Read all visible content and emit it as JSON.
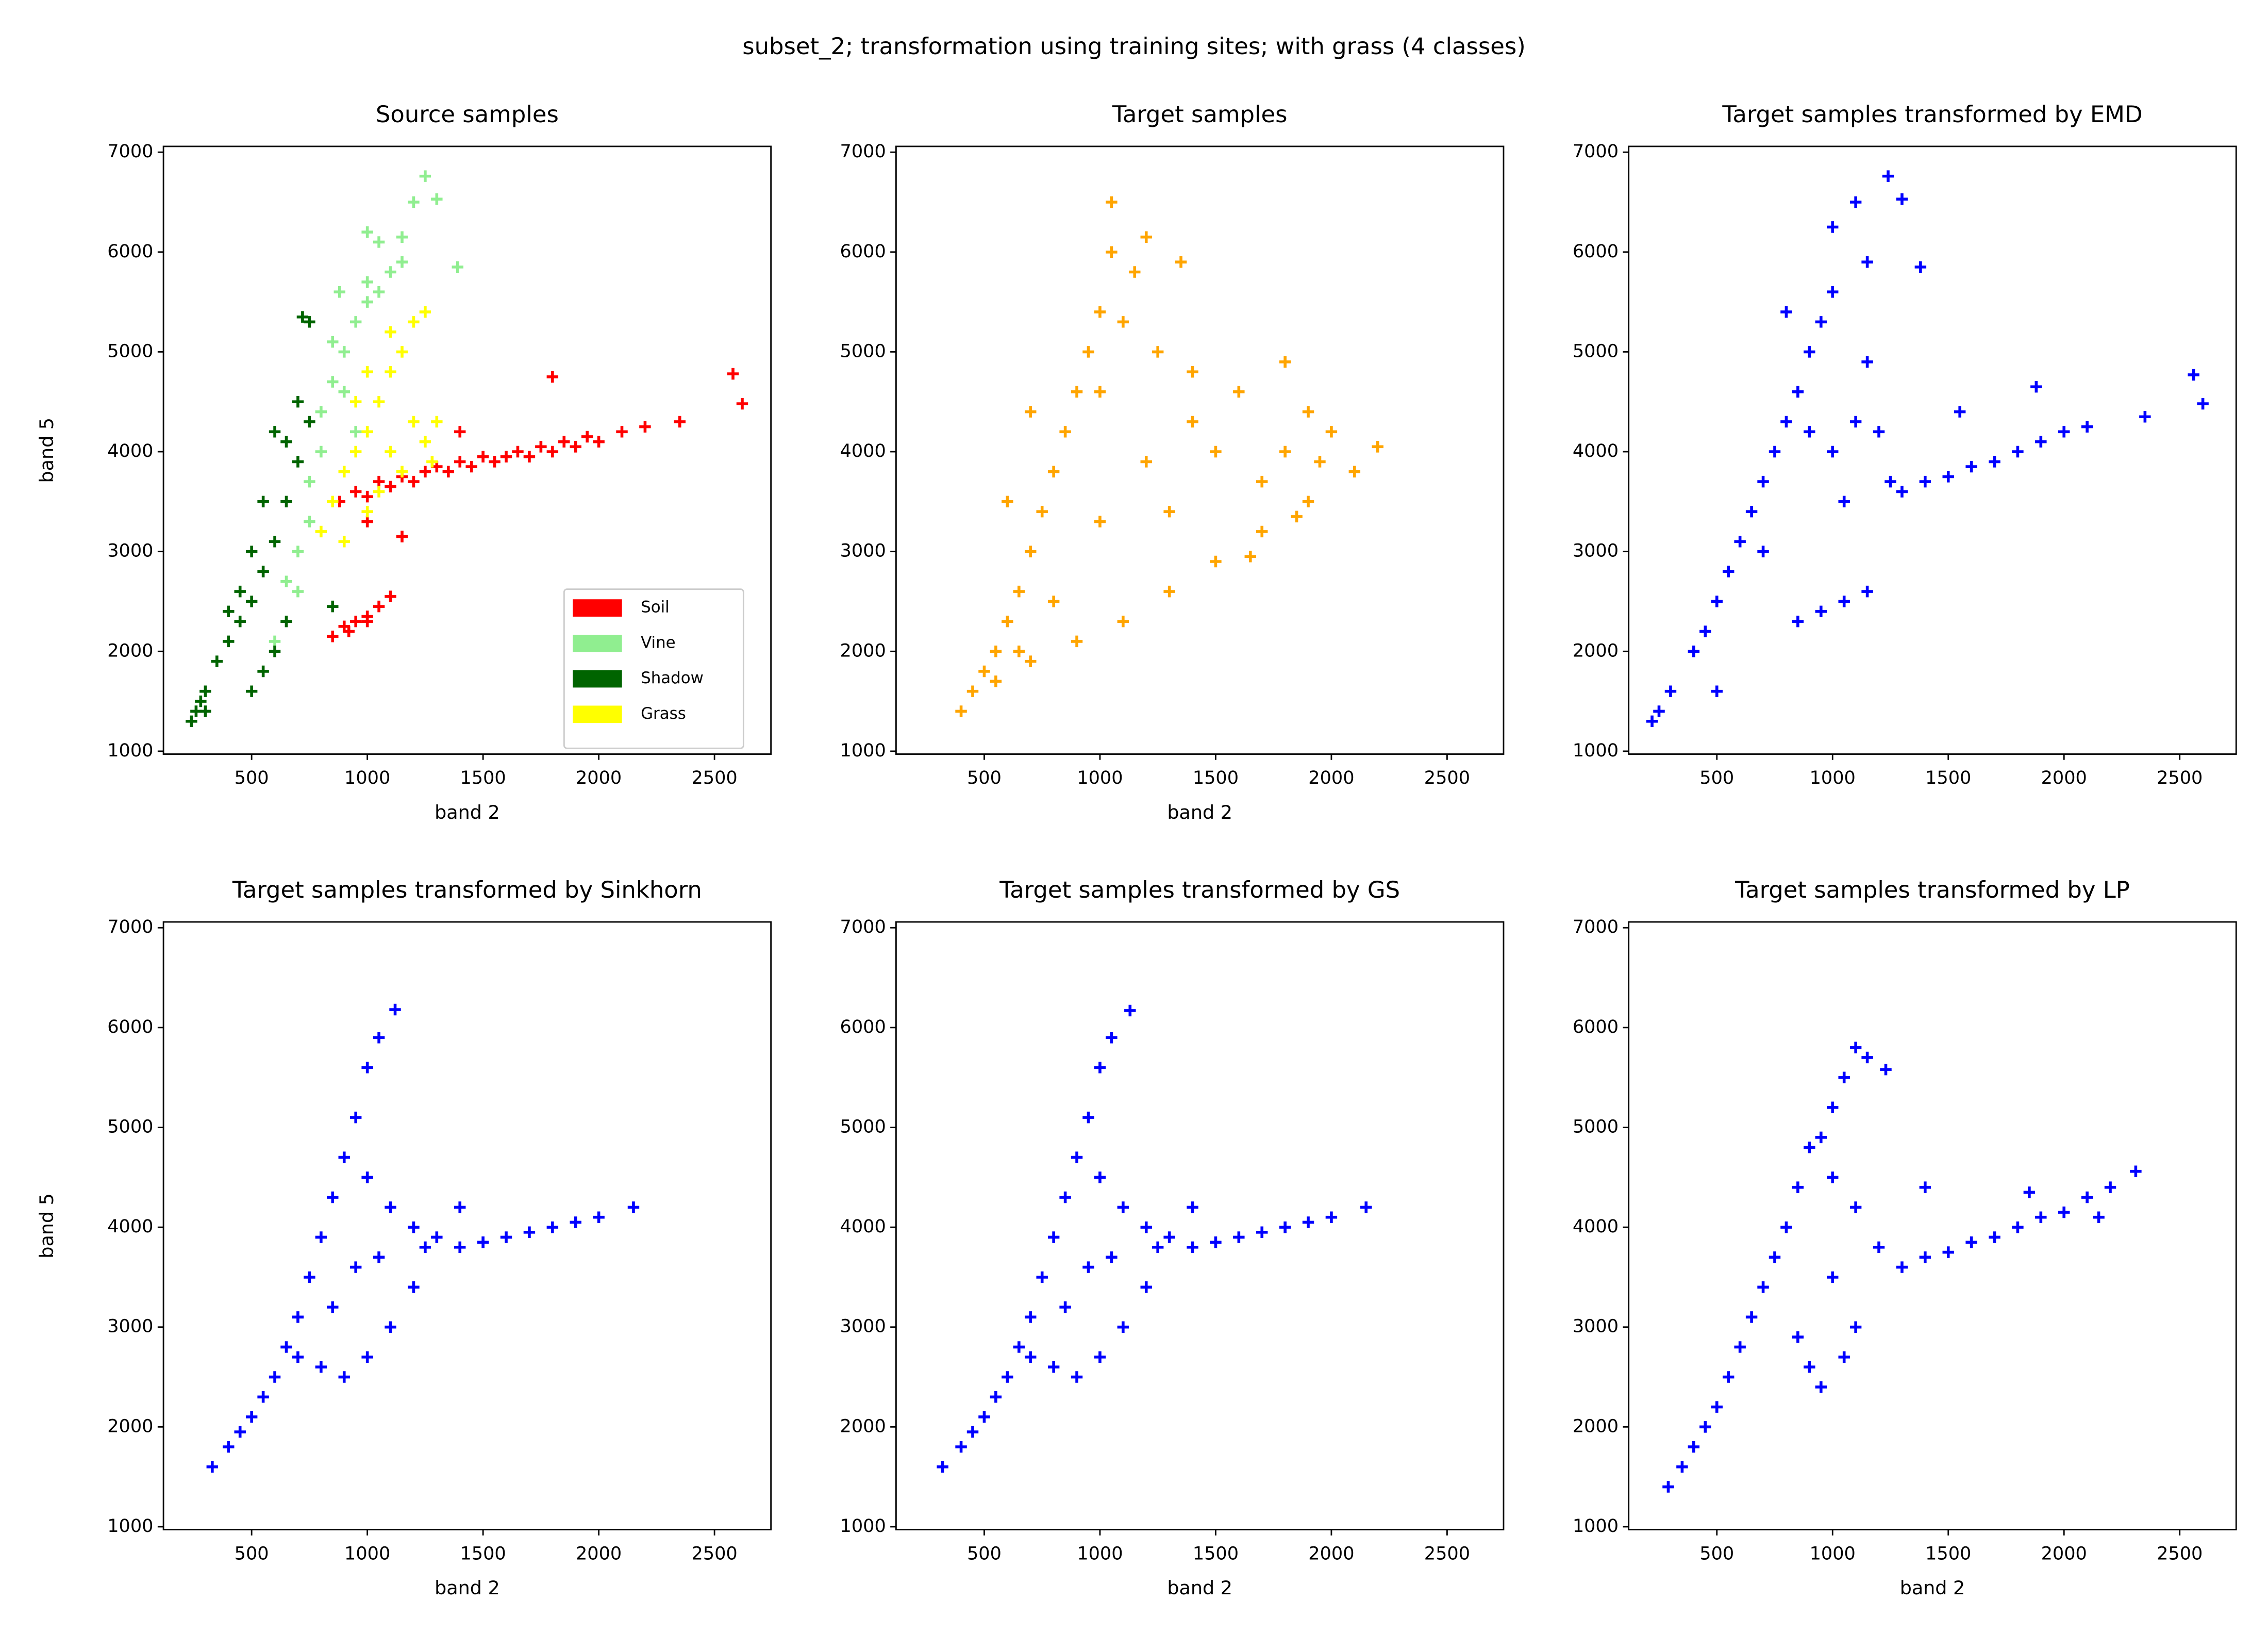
{
  "title": "subset_2; transformation using training sites; with grass (4 classes)",
  "chart_data": [
    {
      "type": "scatter",
      "title": "Source  samples",
      "xlabel": "band 2",
      "ylabel": "band 5",
      "xlim": [
        119,
        2744
      ],
      "ylim": [
        971,
        7058
      ],
      "xticks": [
        500,
        1000,
        1500,
        2000,
        2500
      ],
      "yticks": [
        1000,
        2000,
        3000,
        4000,
        5000,
        6000,
        7000
      ],
      "grid": false,
      "legend": "lower right",
      "series": [
        {
          "name": "Soil",
          "color": "#ff0000",
          "x": [
            880,
            950,
            1000,
            1050,
            1100,
            1150,
            1200,
            1250,
            1300,
            1350,
            1400,
            1450,
            1500,
            1550,
            1600,
            1650,
            1700,
            1750,
            1800,
            1850,
            1900,
            1950,
            2000,
            2100,
            2200,
            2350,
            2580,
            2620,
            1800,
            1400,
            1150,
            1000,
            850,
            900,
            950,
            1000,
            1050,
            1100,
            920,
            1000
          ],
          "y": [
            3500,
            3600,
            3550,
            3700,
            3650,
            3750,
            3700,
            3800,
            3850,
            3800,
            3900,
            3850,
            3950,
            3900,
            3950,
            4000,
            3950,
            4050,
            4000,
            4100,
            4050,
            4150,
            4100,
            4200,
            4250,
            4300,
            4780,
            4480,
            4750,
            4200,
            3150,
            3300,
            2150,
            2250,
            2300,
            2350,
            2450,
            2550,
            2200,
            2300
          ]
        },
        {
          "name": "Vine",
          "color": "#90ee90",
          "x": [
            650,
            700,
            700,
            750,
            750,
            800,
            800,
            850,
            900,
            950,
            1000,
            1000,
            1050,
            1100,
            1150,
            1000,
            1050,
            1200,
            1250,
            1300,
            1390,
            850,
            900,
            950,
            650,
            600,
            880,
            1150
          ],
          "y": [
            2300,
            2600,
            3000,
            3300,
            3700,
            4000,
            4400,
            4700,
            5000,
            5300,
            5500,
            5700,
            5600,
            5800,
            5900,
            6200,
            6100,
            6500,
            6760,
            6530,
            5850,
            5100,
            4600,
            4200,
            2700,
            2100,
            5600,
            6150
          ]
        },
        {
          "name": "Shadow",
          "color": "#006400",
          "x": [
            240,
            260,
            280,
            300,
            350,
            400,
            450,
            500,
            550,
            600,
            650,
            700,
            650,
            700,
            750,
            720,
            600,
            550,
            500,
            450,
            400,
            500,
            550,
            600,
            650,
            850,
            750,
            300
          ],
          "y": [
            1300,
            1400,
            1500,
            1600,
            1900,
            2100,
            2300,
            2500,
            2800,
            3100,
            3500,
            3900,
            4100,
            4500,
            5300,
            5350,
            4200,
            3500,
            3000,
            2600,
            2400,
            1600,
            1800,
            2000,
            2300,
            2450,
            4300,
            1400
          ]
        },
        {
          "name": "Grass",
          "color": "#ffff00",
          "x": [
            800,
            850,
            900,
            950,
            1000,
            1050,
            1100,
            1150,
            1200,
            1250,
            1100,
            1200,
            1250,
            900,
            1000,
            1050,
            1150,
            950,
            1000,
            1100,
            1280,
            1300
          ],
          "y": [
            3200,
            3500,
            3800,
            4000,
            4200,
            4500,
            4800,
            5000,
            5300,
            5400,
            4000,
            4300,
            4100,
            3100,
            3400,
            3600,
            3800,
            4500,
            4800,
            5200,
            3900,
            4300
          ]
        }
      ]
    },
    {
      "type": "scatter",
      "title": "Target samples",
      "xlabel": "band 2",
      "xlim": [
        119,
        2744
      ],
      "ylim": [
        971,
        7058
      ],
      "xticks": [
        500,
        1000,
        1500,
        2000,
        2500
      ],
      "yticks": [
        1000,
        2000,
        3000,
        4000,
        5000,
        6000,
        7000
      ],
      "grid": false,
      "series": [
        {
          "color": "#ffa500",
          "x": [
            400,
            450,
            500,
            550,
            600,
            650,
            700,
            750,
            800,
            850,
            900,
            950,
            1000,
            1050,
            1050,
            1150,
            1200,
            1350,
            1100,
            1250,
            1400,
            1600,
            1800,
            1900,
            2000,
            2200,
            2100,
            1900,
            1700,
            1500,
            1300,
            1100,
            900,
            700,
            550,
            1500,
            1200,
            1000,
            1300,
            1700,
            1800,
            650,
            800,
            1000,
            1400,
            700,
            600,
            1950,
            1650,
            1850
          ],
          "y": [
            1400,
            1600,
            1800,
            2000,
            2300,
            2600,
            3000,
            3400,
            3800,
            4200,
            4600,
            5000,
            5400,
            6500,
            6000,
            5800,
            6150,
            5900,
            5300,
            5000,
            4800,
            4600,
            4900,
            4400,
            4200,
            4050,
            3800,
            3500,
            3200,
            2900,
            2600,
            2300,
            2100,
            1900,
            1700,
            4000,
            3900,
            3300,
            3400,
            3700,
            4000,
            2000,
            2500,
            4600,
            4300,
            4400,
            3500,
            3900,
            2950,
            3350
          ]
        }
      ]
    },
    {
      "type": "scatter",
      "title": "Target samples transformed by EMD",
      "xlim": [
        119,
        2744
      ],
      "ylim": [
        971,
        7058
      ],
      "xticks": [
        500,
        1000,
        1500,
        2000,
        2500
      ],
      "yticks": [
        1000,
        2000,
        3000,
        4000,
        5000,
        6000,
        7000
      ],
      "grid": false,
      "series": [
        {
          "color": "#0000ff",
          "x": [
            220,
            250,
            300,
            400,
            450,
            500,
            550,
            600,
            650,
            700,
            750,
            800,
            850,
            900,
            950,
            1000,
            1000,
            1100,
            1240,
            1300,
            1380,
            1150,
            800,
            1100,
            1200,
            1250,
            1300,
            1400,
            1500,
            1600,
            1700,
            1800,
            1900,
            2000,
            2100,
            2350,
            2560,
            2600,
            1880,
            1550,
            850,
            950,
            1050,
            1150,
            500,
            700,
            900,
            1000,
            1050,
            1150
          ],
          "y": [
            1300,
            1400,
            1600,
            2000,
            2200,
            2500,
            2800,
            3100,
            3400,
            3700,
            4000,
            4300,
            4600,
            5000,
            5300,
            5600,
            6250,
            6500,
            6760,
            6530,
            5850,
            5900,
            5400,
            4300,
            4200,
            3700,
            3600,
            3700,
            3750,
            3850,
            3900,
            4000,
            4100,
            4200,
            4250,
            4350,
            4770,
            4480,
            4650,
            4400,
            2300,
            2400,
            2500,
            2600,
            1600,
            3000,
            4200,
            4000,
            3500,
            4900
          ]
        }
      ]
    },
    {
      "type": "scatter",
      "title": "Target samples transformed by Sinkhorn",
      "xlabel": "band 2",
      "ylabel": "band 5",
      "xlim": [
        119,
        2744
      ],
      "ylim": [
        971,
        7058
      ],
      "xticks": [
        500,
        1000,
        1500,
        2000,
        2500
      ],
      "yticks": [
        1000,
        2000,
        3000,
        4000,
        5000,
        6000,
        7000
      ],
      "grid": false,
      "series": [
        {
          "color": "#0000ff",
          "x": [
            330,
            400,
            450,
            500,
            550,
            600,
            650,
            700,
            750,
            800,
            850,
            900,
            950,
            1000,
            1050,
            1120,
            1000,
            1100,
            1200,
            1300,
            1400,
            1500,
            1600,
            1700,
            1800,
            1900,
            2000,
            2150,
            1200,
            1100,
            1000,
            900,
            800,
            700,
            850,
            950,
            1050,
            1250,
            1400
          ],
          "y": [
            1600,
            1800,
            1950,
            2100,
            2300,
            2500,
            2800,
            3100,
            3500,
            3900,
            4300,
            4700,
            5100,
            5600,
            5900,
            6180,
            4500,
            4200,
            4000,
            3900,
            3800,
            3850,
            3900,
            3950,
            4000,
            4050,
            4100,
            4200,
            3400,
            3000,
            2700,
            2500,
            2600,
            2700,
            3200,
            3600,
            3700,
            3800,
            4200
          ]
        }
      ]
    },
    {
      "type": "scatter",
      "title": "Target samples transformed by GS",
      "xlabel": "band 2",
      "xlim": [
        119,
        2744
      ],
      "ylim": [
        971,
        7058
      ],
      "xticks": [
        500,
        1000,
        1500,
        2000,
        2500
      ],
      "yticks": [
        1000,
        2000,
        3000,
        4000,
        5000,
        6000,
        7000
      ],
      "grid": false,
      "series": [
        {
          "color": "#0000ff",
          "x": [
            320,
            400,
            450,
            500,
            550,
            600,
            650,
            700,
            750,
            800,
            850,
            900,
            950,
            1000,
            1050,
            1130,
            1000,
            1100,
            1200,
            1300,
            1400,
            1500,
            1600,
            1700,
            1800,
            1900,
            2000,
            2150,
            1200,
            1100,
            1000,
            900,
            800,
            700,
            850,
            950,
            1050,
            1250,
            1400
          ],
          "y": [
            1600,
            1800,
            1950,
            2100,
            2300,
            2500,
            2800,
            3100,
            3500,
            3900,
            4300,
            4700,
            5100,
            5600,
            5900,
            6170,
            4500,
            4200,
            4000,
            3900,
            3800,
            3850,
            3900,
            3950,
            4000,
            4050,
            4100,
            4200,
            3400,
            3000,
            2700,
            2500,
            2600,
            2700,
            3200,
            3600,
            3700,
            3800,
            4200
          ]
        }
      ]
    },
    {
      "type": "scatter",
      "title": "Target samples transformed by LP",
      "xlabel": "band 2",
      "xlim": [
        119,
        2744
      ],
      "ylim": [
        971,
        7058
      ],
      "xticks": [
        500,
        1000,
        1500,
        2000,
        2500
      ],
      "yticks": [
        1000,
        2000,
        3000,
        4000,
        5000,
        6000,
        7000
      ],
      "grid": false,
      "series": [
        {
          "color": "#0000ff",
          "x": [
            290,
            350,
            400,
            450,
            500,
            550,
            600,
            650,
            700,
            750,
            800,
            850,
            900,
            950,
            1000,
            1050,
            1100,
            1150,
            1230,
            1000,
            1100,
            1200,
            1300,
            1400,
            1500,
            1600,
            1700,
            1800,
            1900,
            2000,
            2100,
            2200,
            2310,
            1850,
            2150,
            1400,
            900,
            950,
            1050,
            1100,
            850,
            1000
          ],
          "y": [
            1400,
            1600,
            1800,
            2000,
            2200,
            2500,
            2800,
            3100,
            3400,
            3700,
            4000,
            4400,
            4800,
            4900,
            5200,
            5500,
            5800,
            5700,
            5580,
            4500,
            4200,
            3800,
            3600,
            3700,
            3750,
            3850,
            3900,
            4000,
            4100,
            4150,
            4300,
            4400,
            4560,
            4350,
            4100,
            4400,
            2600,
            2400,
            2700,
            3000,
            2900,
            3500
          ]
        }
      ]
    }
  ]
}
